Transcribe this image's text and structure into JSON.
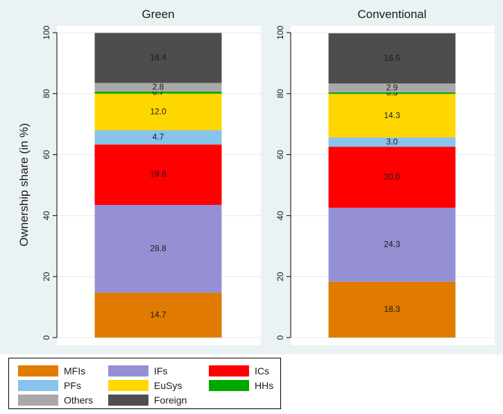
{
  "chart_data": {
    "type": "bar",
    "stacked": true,
    "ylabel": "Ownership share (in %)",
    "ylim": [
      0,
      100
    ],
    "yticks": [
      0,
      20,
      40,
      60,
      80,
      100
    ],
    "grid": true,
    "legend_position": "bottom",
    "categories": [
      "Green",
      "Conventional"
    ],
    "series": [
      {
        "name": "MFIs",
        "color": "#e07b00",
        "values": [
          14.7,
          18.3
        ]
      },
      {
        "name": "IFs",
        "color": "#9590d4",
        "values": [
          28.8,
          24.3
        ]
      },
      {
        "name": "ICs",
        "color": "#ff0000",
        "values": [
          19.8,
          20.0
        ]
      },
      {
        "name": "PFs",
        "color": "#87c3eb",
        "values": [
          4.7,
          3.0
        ]
      },
      {
        "name": "EuSys",
        "color": "#ffd700",
        "values": [
          12.0,
          14.3
        ]
      },
      {
        "name": "HHs",
        "color": "#00a800",
        "values": [
          0.7,
          0.5
        ]
      },
      {
        "name": "Others",
        "color": "#a9a9a9",
        "values": [
          2.8,
          2.9
        ]
      },
      {
        "name": "Foreign",
        "color": "#4d4d4d",
        "values": [
          16.4,
          16.5
        ]
      }
    ],
    "value_labels": [
      [
        "14.7",
        "28.8",
        "19.8",
        "4.7",
        "12.0",
        "0.7",
        "2.8",
        "16.4"
      ],
      [
        "18.3",
        "24.3",
        "20.0",
        "3.0",
        "14.3",
        "0.5",
        "2.9",
        "16.5"
      ]
    ]
  },
  "legend": {
    "items": [
      {
        "label": "MFIs",
        "color": "#e07b00"
      },
      {
        "label": "IFs",
        "color": "#9590d4"
      },
      {
        "label": "ICs",
        "color": "#ff0000"
      },
      {
        "label": "PFs",
        "color": "#87c3eb"
      },
      {
        "label": "EuSys",
        "color": "#ffd700"
      },
      {
        "label": "HHs",
        "color": "#00a800"
      },
      {
        "label": "Others",
        "color": "#a9a9a9"
      },
      {
        "label": "Foreign",
        "color": "#4d4d4d"
      }
    ]
  }
}
